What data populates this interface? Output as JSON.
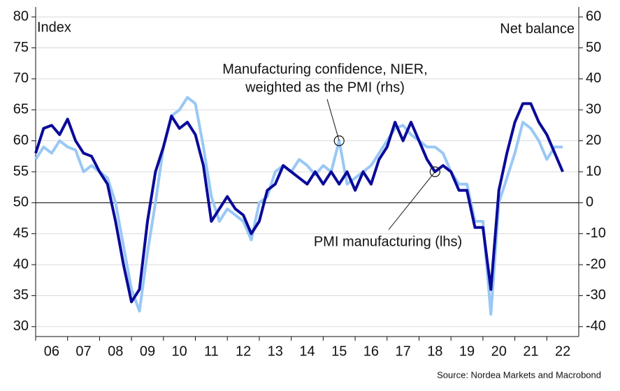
{
  "chart_data": {
    "type": "line",
    "y_label": "Index",
    "y2_label": "Net balance",
    "source": "Source: Nordea Markets and Macrobond",
    "annotations": [
      {
        "lines": [
          "Manufacturing confidence, NIER,",
          "weighted as the PMI (rhs)"
        ],
        "series": 1,
        "point": 38
      },
      {
        "lines": [
          "PMI manufacturing (lhs)"
        ],
        "series": 0,
        "point": 50
      }
    ],
    "xlim": [
      2006,
      2023
    ],
    "xticks": [
      {
        "value": 2006.5,
        "label": "06"
      },
      {
        "value": 2007.5,
        "label": "07"
      },
      {
        "value": 2008.5,
        "label": "08"
      },
      {
        "value": 2009.5,
        "label": "09"
      },
      {
        "value": 2010.5,
        "label": "10"
      },
      {
        "value": 2011.5,
        "label": "11"
      },
      {
        "value": 2012.5,
        "label": "12"
      },
      {
        "value": 2013.5,
        "label": "13"
      },
      {
        "value": 2014.5,
        "label": "14"
      },
      {
        "value": 2015.5,
        "label": "15"
      },
      {
        "value": 2016.5,
        "label": "16"
      },
      {
        "value": 2017.5,
        "label": "17"
      },
      {
        "value": 2018.5,
        "label": "18"
      },
      {
        "value": 2019.5,
        "label": "19"
      },
      {
        "value": 2020.5,
        "label": "20"
      },
      {
        "value": 2021.5,
        "label": "21"
      },
      {
        "value": 2022.5,
        "label": "22"
      }
    ],
    "ylim": [
      28.4,
      81.6
    ],
    "yticks": [
      30,
      35,
      40,
      45,
      50,
      55,
      60,
      65,
      70,
      75,
      80
    ],
    "y2lim": [
      -43.2,
      63.2
    ],
    "y2ticks": [
      -40,
      -30,
      -20,
      -10,
      0,
      10,
      20,
      30,
      40,
      50,
      60
    ],
    "reference_line": 50,
    "grid": true,
    "x": [
      2006,
      2006.25,
      2006.5,
      2006.75,
      2007,
      2007.25,
      2007.5,
      2007.75,
      2008,
      2008.25,
      2008.5,
      2008.75,
      2009,
      2009.25,
      2009.5,
      2009.75,
      2010,
      2010.25,
      2010.5,
      2010.75,
      2011,
      2011.25,
      2011.5,
      2011.75,
      2012,
      2012.25,
      2012.5,
      2012.75,
      2013,
      2013.25,
      2013.5,
      2013.75,
      2014,
      2014.25,
      2014.5,
      2014.75,
      2015,
      2015.25,
      2015.5,
      2015.75,
      2016,
      2016.25,
      2016.5,
      2016.75,
      2017,
      2017.25,
      2017.5,
      2017.75,
      2018,
      2018.25,
      2018.5,
      2018.75,
      2019,
      2019.25,
      2019.5,
      2019.75,
      2020,
      2020.25,
      2020.5,
      2020.75,
      2021,
      2021.25,
      2021.5,
      2021.75,
      2022,
      2022.25,
      2022.5
    ],
    "series": [
      {
        "name": "PMI manufacturing (lhs)",
        "color": "#0a0a9a",
        "axis": "y",
        "values": [
          58,
          62,
          62.5,
          61,
          63.5,
          60,
          58,
          57.5,
          55,
          53,
          47,
          40,
          34,
          36,
          47,
          55,
          59,
          64,
          62,
          63,
          61,
          56,
          47,
          49,
          51,
          49,
          48,
          45,
          47,
          52,
          53,
          56,
          55,
          54,
          53,
          55,
          53,
          55,
          53,
          55,
          52,
          55,
          53,
          57,
          59,
          63,
          60,
          63,
          60,
          57,
          55,
          56,
          55,
          52,
          52,
          46,
          46,
          36,
          52,
          58,
          63,
          66,
          66,
          63,
          61,
          58,
          55
        ]
      },
      {
        "name": "Manufacturing confidence, NIER, weighted as the PMI (rhs)",
        "color": "#99c8f5",
        "axis": "y2",
        "values": [
          14,
          18,
          16,
          20,
          18,
          17,
          10,
          12,
          10,
          8,
          0,
          -14,
          -28,
          -35,
          -16,
          0,
          18,
          28,
          30,
          34,
          32,
          18,
          2,
          -6,
          -2,
          -4,
          -6,
          -12,
          0,
          2,
          10,
          12,
          10,
          14,
          12,
          9,
          12,
          10,
          20,
          6,
          8,
          10,
          12,
          16,
          20,
          24,
          25,
          22,
          20,
          18,
          18,
          16,
          10,
          6,
          6,
          -6,
          -6,
          -36,
          0,
          8,
          16,
          26,
          24,
          20,
          14,
          18,
          18
        ]
      }
    ]
  }
}
